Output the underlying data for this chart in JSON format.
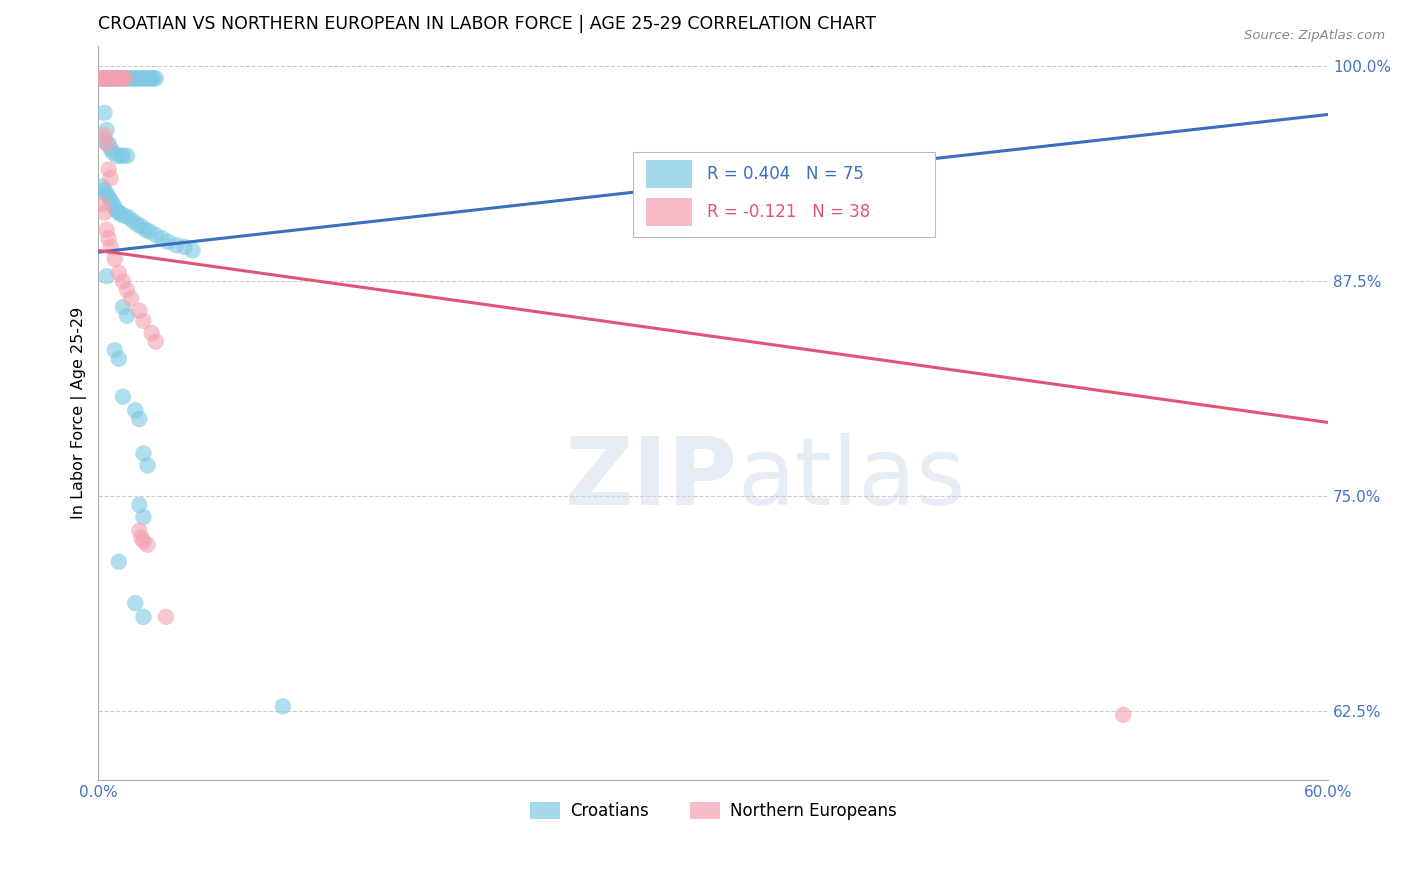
{
  "title": "CROATIAN VS NORTHERN EUROPEAN IN LABOR FORCE | AGE 25-29 CORRELATION CHART",
  "source": "Source: ZipAtlas.com",
  "ylabel": "In Labor Force | Age 25-29",
  "xlim": [
    0.0,
    0.6
  ],
  "ylim": [
    0.585,
    1.012
  ],
  "yticks": [
    0.625,
    0.75,
    0.875,
    1.0
  ],
  "ytick_labels": [
    "62.5%",
    "75.0%",
    "87.5%",
    "100.0%"
  ],
  "xticks": [
    0.0,
    0.1,
    0.2,
    0.3,
    0.4,
    0.5,
    0.6
  ],
  "xtick_labels": [
    "0.0%",
    "",
    "",
    "",
    "",
    "",
    "60.0%"
  ],
  "blue_color": "#7ec8e3",
  "pink_color": "#f4a0b0",
  "blue_line_color": "#3a6fbf",
  "pink_line_color": "#e05575",
  "watermark_zip": "ZIP",
  "watermark_atlas": "atlas",
  "blue_scatter": [
    [
      0.001,
      0.993
    ],
    [
      0.002,
      0.993
    ],
    [
      0.002,
      0.993
    ],
    [
      0.003,
      0.993
    ],
    [
      0.004,
      0.993
    ],
    [
      0.005,
      0.993
    ],
    [
      0.005,
      0.993
    ],
    [
      0.006,
      0.993
    ],
    [
      0.006,
      0.993
    ],
    [
      0.007,
      0.993
    ],
    [
      0.008,
      0.993
    ],
    [
      0.009,
      0.993
    ],
    [
      0.01,
      0.993
    ],
    [
      0.011,
      0.993
    ],
    [
      0.012,
      0.993
    ],
    [
      0.013,
      0.993
    ],
    [
      0.014,
      0.993
    ],
    [
      0.015,
      0.993
    ],
    [
      0.016,
      0.993
    ],
    [
      0.017,
      0.993
    ],
    [
      0.018,
      0.993
    ],
    [
      0.019,
      0.993
    ],
    [
      0.02,
      0.993
    ],
    [
      0.021,
      0.993
    ],
    [
      0.022,
      0.993
    ],
    [
      0.023,
      0.993
    ],
    [
      0.024,
      0.993
    ],
    [
      0.025,
      0.993
    ],
    [
      0.026,
      0.993
    ],
    [
      0.027,
      0.993
    ],
    [
      0.028,
      0.993
    ],
    [
      0.003,
      0.973
    ],
    [
      0.004,
      0.963
    ],
    [
      0.003,
      0.957
    ],
    [
      0.005,
      0.955
    ],
    [
      0.006,
      0.952
    ],
    [
      0.007,
      0.95
    ],
    [
      0.009,
      0.948
    ],
    [
      0.011,
      0.948
    ],
    [
      0.012,
      0.948
    ],
    [
      0.014,
      0.948
    ],
    [
      0.002,
      0.93
    ],
    [
      0.003,
      0.928
    ],
    [
      0.004,
      0.926
    ],
    [
      0.005,
      0.924
    ],
    [
      0.006,
      0.922
    ],
    [
      0.007,
      0.92
    ],
    [
      0.008,
      0.918
    ],
    [
      0.009,
      0.916
    ],
    [
      0.01,
      0.915
    ],
    [
      0.011,
      0.914
    ],
    [
      0.013,
      0.913
    ],
    [
      0.015,
      0.912
    ],
    [
      0.017,
      0.91
    ],
    [
      0.019,
      0.908
    ],
    [
      0.021,
      0.907
    ],
    [
      0.023,
      0.905
    ],
    [
      0.025,
      0.904
    ],
    [
      0.028,
      0.902
    ],
    [
      0.031,
      0.9
    ],
    [
      0.034,
      0.898
    ],
    [
      0.038,
      0.896
    ],
    [
      0.042,
      0.895
    ],
    [
      0.046,
      0.893
    ],
    [
      0.004,
      0.878
    ],
    [
      0.012,
      0.86
    ],
    [
      0.014,
      0.855
    ],
    [
      0.008,
      0.835
    ],
    [
      0.01,
      0.83
    ],
    [
      0.012,
      0.808
    ],
    [
      0.018,
      0.8
    ],
    [
      0.02,
      0.795
    ],
    [
      0.022,
      0.775
    ],
    [
      0.024,
      0.768
    ],
    [
      0.02,
      0.745
    ],
    [
      0.022,
      0.738
    ],
    [
      0.01,
      0.712
    ],
    [
      0.018,
      0.688
    ],
    [
      0.022,
      0.68
    ],
    [
      0.09,
      0.628
    ]
  ],
  "pink_scatter": [
    [
      0.001,
      0.993
    ],
    [
      0.002,
      0.993
    ],
    [
      0.003,
      0.993
    ],
    [
      0.004,
      0.993
    ],
    [
      0.005,
      0.993
    ],
    [
      0.006,
      0.993
    ],
    [
      0.007,
      0.993
    ],
    [
      0.008,
      0.993
    ],
    [
      0.009,
      0.993
    ],
    [
      0.01,
      0.993
    ],
    [
      0.011,
      0.993
    ],
    [
      0.012,
      0.993
    ],
    [
      0.013,
      0.993
    ],
    [
      0.003,
      0.96
    ],
    [
      0.004,
      0.955
    ],
    [
      0.005,
      0.94
    ],
    [
      0.006,
      0.935
    ],
    [
      0.002,
      0.92
    ],
    [
      0.003,
      0.915
    ],
    [
      0.004,
      0.905
    ],
    [
      0.005,
      0.9
    ],
    [
      0.006,
      0.895
    ],
    [
      0.008,
      0.888
    ],
    [
      0.01,
      0.88
    ],
    [
      0.012,
      0.875
    ],
    [
      0.014,
      0.87
    ],
    [
      0.016,
      0.865
    ],
    [
      0.02,
      0.858
    ],
    [
      0.022,
      0.852
    ],
    [
      0.026,
      0.845
    ],
    [
      0.028,
      0.84
    ],
    [
      0.02,
      0.73
    ],
    [
      0.021,
      0.726
    ],
    [
      0.022,
      0.724
    ],
    [
      0.024,
      0.722
    ],
    [
      0.033,
      0.68
    ],
    [
      0.5,
      0.623
    ]
  ],
  "blue_line": [
    [
      0.0,
      0.892
    ],
    [
      0.6,
      0.972
    ]
  ],
  "pink_line": [
    [
      0.0,
      0.893
    ],
    [
      0.6,
      0.793
    ]
  ]
}
